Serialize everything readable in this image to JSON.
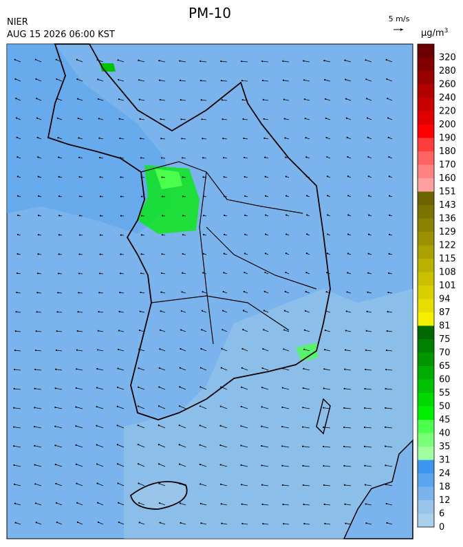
{
  "header": {
    "title": "PM-10",
    "agency": "NIER",
    "time": "AUG 15 2026 06:00 KST",
    "wind_scale": "5 m/s"
  },
  "legend": {
    "unit": {
      "base": "μg/m",
      "sup": "3"
    },
    "items": [
      {
        "label": "320",
        "color": "#6a0000"
      },
      {
        "label": "280",
        "color": "#800000"
      },
      {
        "label": "260",
        "color": "#980000"
      },
      {
        "label": "240",
        "color": "#b00000"
      },
      {
        "label": "220",
        "color": "#c80000"
      },
      {
        "label": "200",
        "color": "#e00000"
      },
      {
        "label": "190",
        "color": "#ff0000"
      },
      {
        "label": "180",
        "color": "#ff3c3c"
      },
      {
        "label": "170",
        "color": "#ff6464"
      },
      {
        "label": "160",
        "color": "#ff8282"
      },
      {
        "label": "151",
        "color": "#ffa0a0"
      },
      {
        "label": "143",
        "color": "#6b6400"
      },
      {
        "label": "136",
        "color": "#7b7300"
      },
      {
        "label": "129",
        "color": "#8a8200"
      },
      {
        "label": "122",
        "color": "#9a9100"
      },
      {
        "label": "115",
        "color": "#aaa000"
      },
      {
        "label": "108",
        "color": "#bab000"
      },
      {
        "label": "101",
        "color": "#cac000"
      },
      {
        "label": "94",
        "color": "#d8cf00"
      },
      {
        "label": "87",
        "color": "#e6de00"
      },
      {
        "label": "81",
        "color": "#f4ee00"
      },
      {
        "label": "75",
        "color": "#006a00"
      },
      {
        "label": "70",
        "color": "#008000"
      },
      {
        "label": "65",
        "color": "#009600"
      },
      {
        "label": "60",
        "color": "#00ac00"
      },
      {
        "label": "55",
        "color": "#00c200"
      },
      {
        "label": "50",
        "color": "#00d800"
      },
      {
        "label": "45",
        "color": "#00ee00"
      },
      {
        "label": "40",
        "color": "#4cff4c"
      },
      {
        "label": "35",
        "color": "#78ff78"
      },
      {
        "label": "31",
        "color": "#a0ffa0"
      },
      {
        "label": "24",
        "color": "#3c96f0"
      },
      {
        "label": "18",
        "color": "#5aa5ee"
      },
      {
        "label": "12",
        "color": "#7bb4ec"
      },
      {
        "label": "6",
        "color": "#98c4ea"
      },
      {
        "label": "0",
        "color": "#a8d0e8"
      }
    ]
  }
}
